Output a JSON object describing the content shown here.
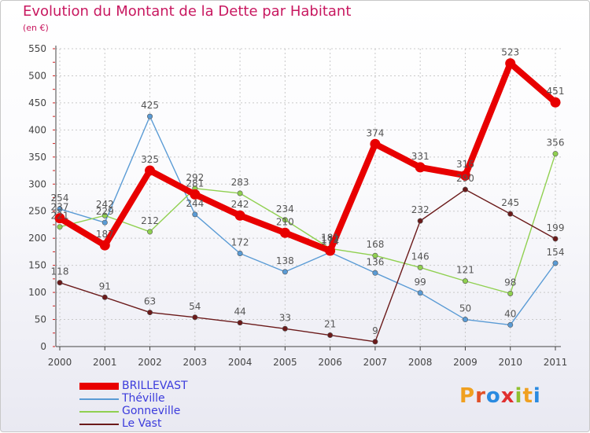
{
  "title": "Evolution du Montant de la Dette par Habitant",
  "subtitle": "(en €)",
  "logo": {
    "text": "Proxiti",
    "letters": [
      {
        "ch": "P",
        "color": "#f0a020"
      },
      {
        "ch": "r",
        "color": "#e05028"
      },
      {
        "ch": "o",
        "color": "#2a8ae0"
      },
      {
        "ch": "x",
        "color": "#e03030"
      },
      {
        "ch": "i",
        "color": "#90c030"
      },
      {
        "ch": "t",
        "color": "#f0a020"
      },
      {
        "ch": "i",
        "color": "#2a8ae0"
      }
    ]
  },
  "chart_data": {
    "type": "line",
    "title": "Evolution du Montant de la Dette par Habitant",
    "subtitle": "(en €)",
    "x": [
      "2000",
      "2001",
      "2002",
      "2003",
      "2004",
      "2005",
      "2006",
      "2007",
      "2008",
      "2009",
      "2010",
      "2011"
    ],
    "ylim": [
      0,
      550
    ],
    "yticks": [
      0,
      50,
      100,
      150,
      200,
      250,
      300,
      350,
      400,
      450,
      500,
      550
    ],
    "grid": true,
    "legend_position": "bottom-left",
    "series": [
      {
        "name": "BRILLEVAST",
        "color": "#e80000",
        "emphasis": true,
        "values": [
          237,
          187,
          325,
          281,
          242,
          210,
          177,
          374,
          331,
          316,
          523,
          451
        ]
      },
      {
        "name": "Théville",
        "color": "#5a9bd5",
        "emphasis": false,
        "values": [
          254,
          229,
          425,
          244,
          172,
          138,
          174,
          136,
          99,
          50,
          40,
          154
        ]
      },
      {
        "name": "Gonneville",
        "color": "#90d050",
        "emphasis": false,
        "values": [
          221,
          242,
          212,
          292,
          283,
          234,
          181,
          168,
          146,
          121,
          98,
          356
        ]
      },
      {
        "name": "Le Vast",
        "color": "#6b1a1a",
        "emphasis": false,
        "values": [
          118,
          91,
          63,
          54,
          44,
          33,
          21,
          9,
          232,
          290,
          245,
          199
        ]
      }
    ]
  }
}
